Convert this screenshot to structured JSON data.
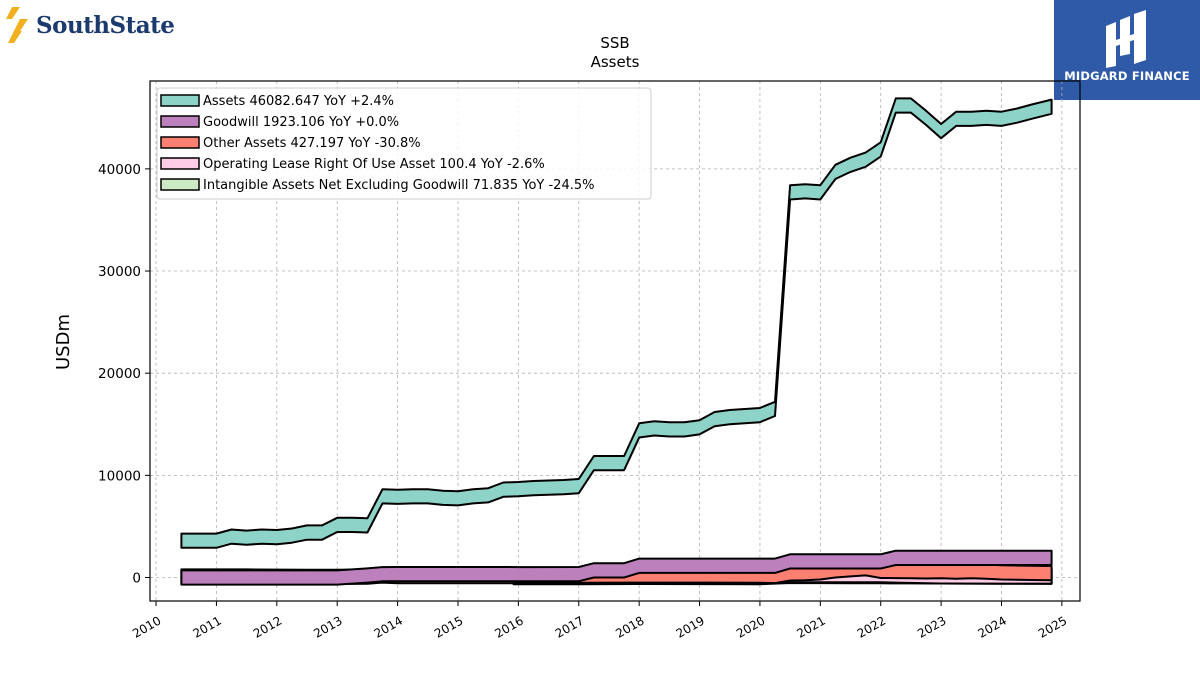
{
  "brand": {
    "name": "SouthState"
  },
  "partner": {
    "name": "MIDGARD FINANCE"
  },
  "chart_data": {
    "type": "area",
    "title": "SSB",
    "subtitle": "Assets",
    "ylabel": "USDm",
    "xlabel": "",
    "xlim": [
      2009.9,
      2025.3
    ],
    "ylim": [
      -2300,
      48600
    ],
    "yticks": [
      0,
      10000,
      20000,
      30000,
      40000
    ],
    "ytick_labels": [
      "0",
      "10000",
      "20000",
      "30000",
      "40000"
    ],
    "xticks": [
      2010,
      2011,
      2012,
      2013,
      2014,
      2015,
      2016,
      2017,
      2018,
      2019,
      2020,
      2021,
      2022,
      2023,
      2024,
      2025
    ],
    "xtick_labels": [
      "2010",
      "2011",
      "2012",
      "2013",
      "2014",
      "2015",
      "2016",
      "2017",
      "2018",
      "2019",
      "2020",
      "2021",
      "2022",
      "2023",
      "2024",
      "2025"
    ],
    "grid": true,
    "legend_position": "top-left",
    "series": [
      {
        "name": "Assets",
        "legend_label": "Assets  46082.647 YoY +2.4%",
        "color": "#8dd3c7",
        "points": [
          [
            2010.42,
            3600
          ],
          [
            2010.67,
            3600
          ],
          [
            2010.92,
            3600
          ],
          [
            2011.0,
            3600
          ],
          [
            2011.25,
            4000
          ],
          [
            2011.5,
            3900
          ],
          [
            2011.75,
            4000
          ],
          [
            2012.0,
            3950
          ],
          [
            2012.25,
            4100
          ],
          [
            2012.5,
            4400
          ],
          [
            2012.75,
            4400
          ],
          [
            2013.0,
            5150
          ],
          [
            2013.25,
            5150
          ],
          [
            2013.5,
            5100
          ],
          [
            2013.75,
            7950
          ],
          [
            2014.0,
            7900
          ],
          [
            2014.25,
            7950
          ],
          [
            2014.5,
            7950
          ],
          [
            2014.75,
            7800
          ],
          [
            2015.0,
            7750
          ],
          [
            2015.25,
            7950
          ],
          [
            2015.5,
            8050
          ],
          [
            2015.75,
            8600
          ],
          [
            2016.0,
            8650
          ],
          [
            2016.25,
            8750
          ],
          [
            2016.5,
            8800
          ],
          [
            2016.75,
            8850
          ],
          [
            2017.0,
            8950
          ],
          [
            2017.25,
            11200
          ],
          [
            2017.5,
            11200
          ],
          [
            2017.75,
            11200
          ],
          [
            2018.0,
            14400
          ],
          [
            2018.25,
            14600
          ],
          [
            2018.5,
            14500
          ],
          [
            2018.75,
            14500
          ],
          [
            2019.0,
            14700
          ],
          [
            2019.25,
            15500
          ],
          [
            2019.5,
            15700
          ],
          [
            2019.75,
            15800
          ],
          [
            2020.0,
            15900
          ],
          [
            2020.25,
            16500
          ],
          [
            2020.5,
            37700
          ],
          [
            2020.75,
            37800
          ],
          [
            2021.0,
            37700
          ],
          [
            2021.25,
            39700
          ],
          [
            2021.5,
            40400
          ],
          [
            2021.75,
            40900
          ],
          [
            2022.0,
            41900
          ],
          [
            2022.25,
            46200
          ],
          [
            2022.5,
            46200
          ],
          [
            2022.75,
            45000
          ],
          [
            2023.0,
            43700
          ],
          [
            2023.25,
            44900
          ],
          [
            2023.5,
            44900
          ],
          [
            2023.75,
            45000
          ],
          [
            2024.0,
            44900
          ],
          [
            2024.25,
            45200
          ],
          [
            2024.5,
            45600
          ],
          [
            2024.83,
            46083
          ]
        ]
      },
      {
        "name": "Goodwill",
        "legend_label": "Goodwill  1923.106 YoY +0.0%",
        "color": "#bc80bd",
        "points": [
          [
            2010.42,
            0
          ],
          [
            2011.0,
            0
          ],
          [
            2012.0,
            0
          ],
          [
            2013.0,
            0
          ],
          [
            2013.5,
            200
          ],
          [
            2013.75,
            320
          ],
          [
            2014.0,
            330
          ],
          [
            2015.0,
            330
          ],
          [
            2015.75,
            330
          ],
          [
            2016.0,
            320
          ],
          [
            2017.0,
            330
          ],
          [
            2017.25,
            700
          ],
          [
            2017.75,
            700
          ],
          [
            2018.0,
            1150
          ],
          [
            2018.5,
            1150
          ],
          [
            2019.0,
            1150
          ],
          [
            2019.5,
            1150
          ],
          [
            2020.0,
            1150
          ],
          [
            2020.25,
            1150
          ],
          [
            2020.5,
            1580
          ],
          [
            2020.75,
            1580
          ],
          [
            2021.0,
            1580
          ],
          [
            2021.5,
            1580
          ],
          [
            2022.0,
            1580
          ],
          [
            2022.25,
            1923
          ],
          [
            2023.0,
            1923
          ],
          [
            2024.0,
            1923
          ],
          [
            2024.83,
            1923
          ]
        ]
      },
      {
        "name": "Other Assets",
        "legend_label": "Other Assets  427.197 YoY -30.8%",
        "color": "#fb8072",
        "points": [
          [
            2010.42,
            100
          ],
          [
            2011.0,
            100
          ],
          [
            2011.5,
            100
          ],
          [
            2012.0,
            80
          ],
          [
            2012.5,
            70
          ],
          [
            2013.0,
            60
          ],
          [
            2013.5,
            90
          ],
          [
            2013.75,
            200
          ],
          [
            2014.0,
            140
          ],
          [
            2014.5,
            140
          ],
          [
            2015.0,
            140
          ],
          [
            2015.5,
            140
          ],
          [
            2015.92,
            140
          ],
          [
            2016.0,
            200
          ],
          [
            2017.0,
            190
          ],
          [
            2018.0,
            200
          ],
          [
            2019.0,
            200
          ],
          [
            2020.0,
            180
          ],
          [
            2020.25,
            150
          ],
          [
            2020.5,
            400
          ],
          [
            2020.75,
            420
          ],
          [
            2021.0,
            500
          ],
          [
            2021.25,
            700
          ],
          [
            2021.5,
            800
          ],
          [
            2021.75,
            900
          ],
          [
            2022.0,
            650
          ],
          [
            2022.25,
            640
          ],
          [
            2022.5,
            620
          ],
          [
            2022.75,
            600
          ],
          [
            2023.0,
            620
          ],
          [
            2023.25,
            580
          ],
          [
            2023.5,
            620
          ],
          [
            2023.75,
            580
          ],
          [
            2024.0,
            500
          ],
          [
            2024.5,
            450
          ],
          [
            2024.83,
            427
          ]
        ]
      },
      {
        "name": "Operating Lease Right Of Use Asset",
        "legend_label": "Operating Lease Right Of Use Asset  100.4 YoY -2.6%",
        "color": "#fccde5",
        "points": [
          [
            2019.0,
            110
          ],
          [
            2019.5,
            110
          ],
          [
            2020.0,
            110
          ],
          [
            2020.5,
            230
          ],
          [
            2021.0,
            240
          ],
          [
            2022.0,
            230
          ],
          [
            2023.0,
            110
          ],
          [
            2024.0,
            103
          ],
          [
            2024.83,
            100
          ]
        ]
      },
      {
        "name": "Intangible Assets Net Excluding Goodwill",
        "legend_label": "Intangible Assets Net Excluding Goodwill  71.835 YoY -24.5%",
        "color": "#ccebc5",
        "points": [
          [
            2015.92,
            30
          ],
          [
            2016.5,
            30
          ],
          [
            2017.0,
            30
          ],
          [
            2017.5,
            50
          ],
          [
            2018.0,
            60
          ],
          [
            2019.0,
            50
          ],
          [
            2020.0,
            40
          ],
          [
            2020.5,
            160
          ],
          [
            2021.0,
            150
          ],
          [
            2021.5,
            140
          ],
          [
            2022.0,
            130
          ],
          [
            2022.5,
            120
          ],
          [
            2023.0,
            105
          ],
          [
            2023.5,
            95
          ],
          [
            2024.0,
            85
          ],
          [
            2024.83,
            72
          ]
        ]
      }
    ]
  }
}
